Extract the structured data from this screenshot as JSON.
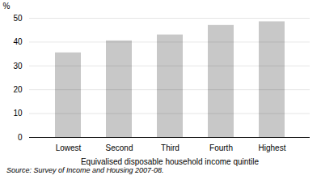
{
  "chart_data": {
    "type": "bar",
    "categories": [
      "Lowest",
      "Second",
      "Third",
      "Fourth",
      "Highest"
    ],
    "values": [
      35.5,
      40.5,
      43.0,
      47.0,
      48.5
    ],
    "color": "#c8c8c8",
    "ylabel": "%",
    "xlabel": "Equivalised disposable household income quintile",
    "caption": "Source: Survey of Income and Housing 2007-08.",
    "ylim": [
      0,
      50
    ],
    "yticks": [
      0,
      10,
      20,
      30,
      40,
      50
    ],
    "grid": true
  }
}
